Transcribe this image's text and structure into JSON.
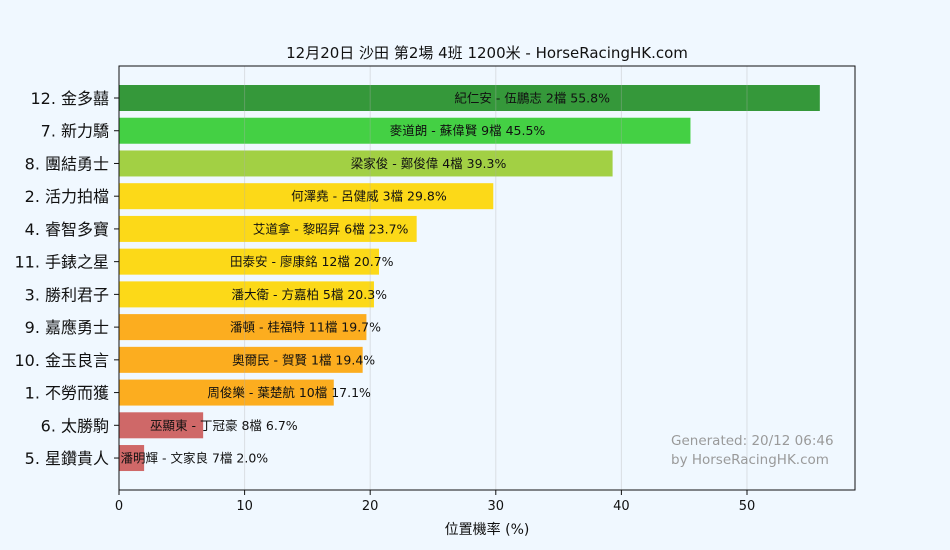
{
  "chart_data": {
    "type": "bar",
    "orientation": "horizontal",
    "title": "12月20日  沙田  第2場  4班  1200米 - HorseRacingHK.com",
    "xlabel": "位置機率 (%)",
    "ylabel": "",
    "xlim": [
      0,
      58.6
    ],
    "xticks": [
      0,
      10,
      20,
      30,
      40,
      50
    ],
    "grid": "vertical",
    "categories": [
      "12. 金多囍",
      "7. 新力驕",
      "8. 團結勇士",
      "2. 活力拍檔",
      "4. 睿智多寶",
      "11. 手錶之星",
      "3. 勝利君子",
      "9. 嘉應勇士",
      "10. 金玉良言",
      "1. 不勞而獲",
      "6. 太勝駒",
      "5. 星鑽貴人"
    ],
    "values": [
      55.8,
      45.5,
      39.3,
      29.8,
      23.7,
      20.7,
      20.3,
      19.7,
      19.4,
      17.1,
      6.7,
      2.0
    ],
    "bar_labels": [
      "紀仁安 - 伍鵬志 2檔  55.8%",
      "麥道朗 - 蘇偉賢 9檔  45.5%",
      "梁家俊 - 鄭俊偉 4檔  39.3%",
      "何澤堯 - 呂健威 3檔  29.8%",
      "艾道拿 - 黎昭昇 6檔  23.7%",
      "田泰安 - 廖康銘 12檔  20.7%",
      "潘大衛 - 方嘉柏 5檔  20.3%",
      "潘頓 - 桂福特 11檔  19.7%",
      "奧爾民 - 賀賢 1檔  19.4%",
      "周俊樂 - 葉楚航 10檔  17.1%",
      "巫顯東 - 丁冠豪 8檔  6.7%",
      "潘明輝 - 文家良 7檔  2.0%"
    ],
    "colors": [
      "#35983a",
      "#44d044",
      "#a2d044",
      "#fcd918",
      "#fcd918",
      "#fcd918",
      "#fcd918",
      "#fcad1f",
      "#fcad1f",
      "#fcad1f",
      "#cf6868",
      "#cf6868"
    ],
    "watermark": [
      "Generated: 20/12 06:46",
      "by HorseRacingHK.com"
    ]
  }
}
